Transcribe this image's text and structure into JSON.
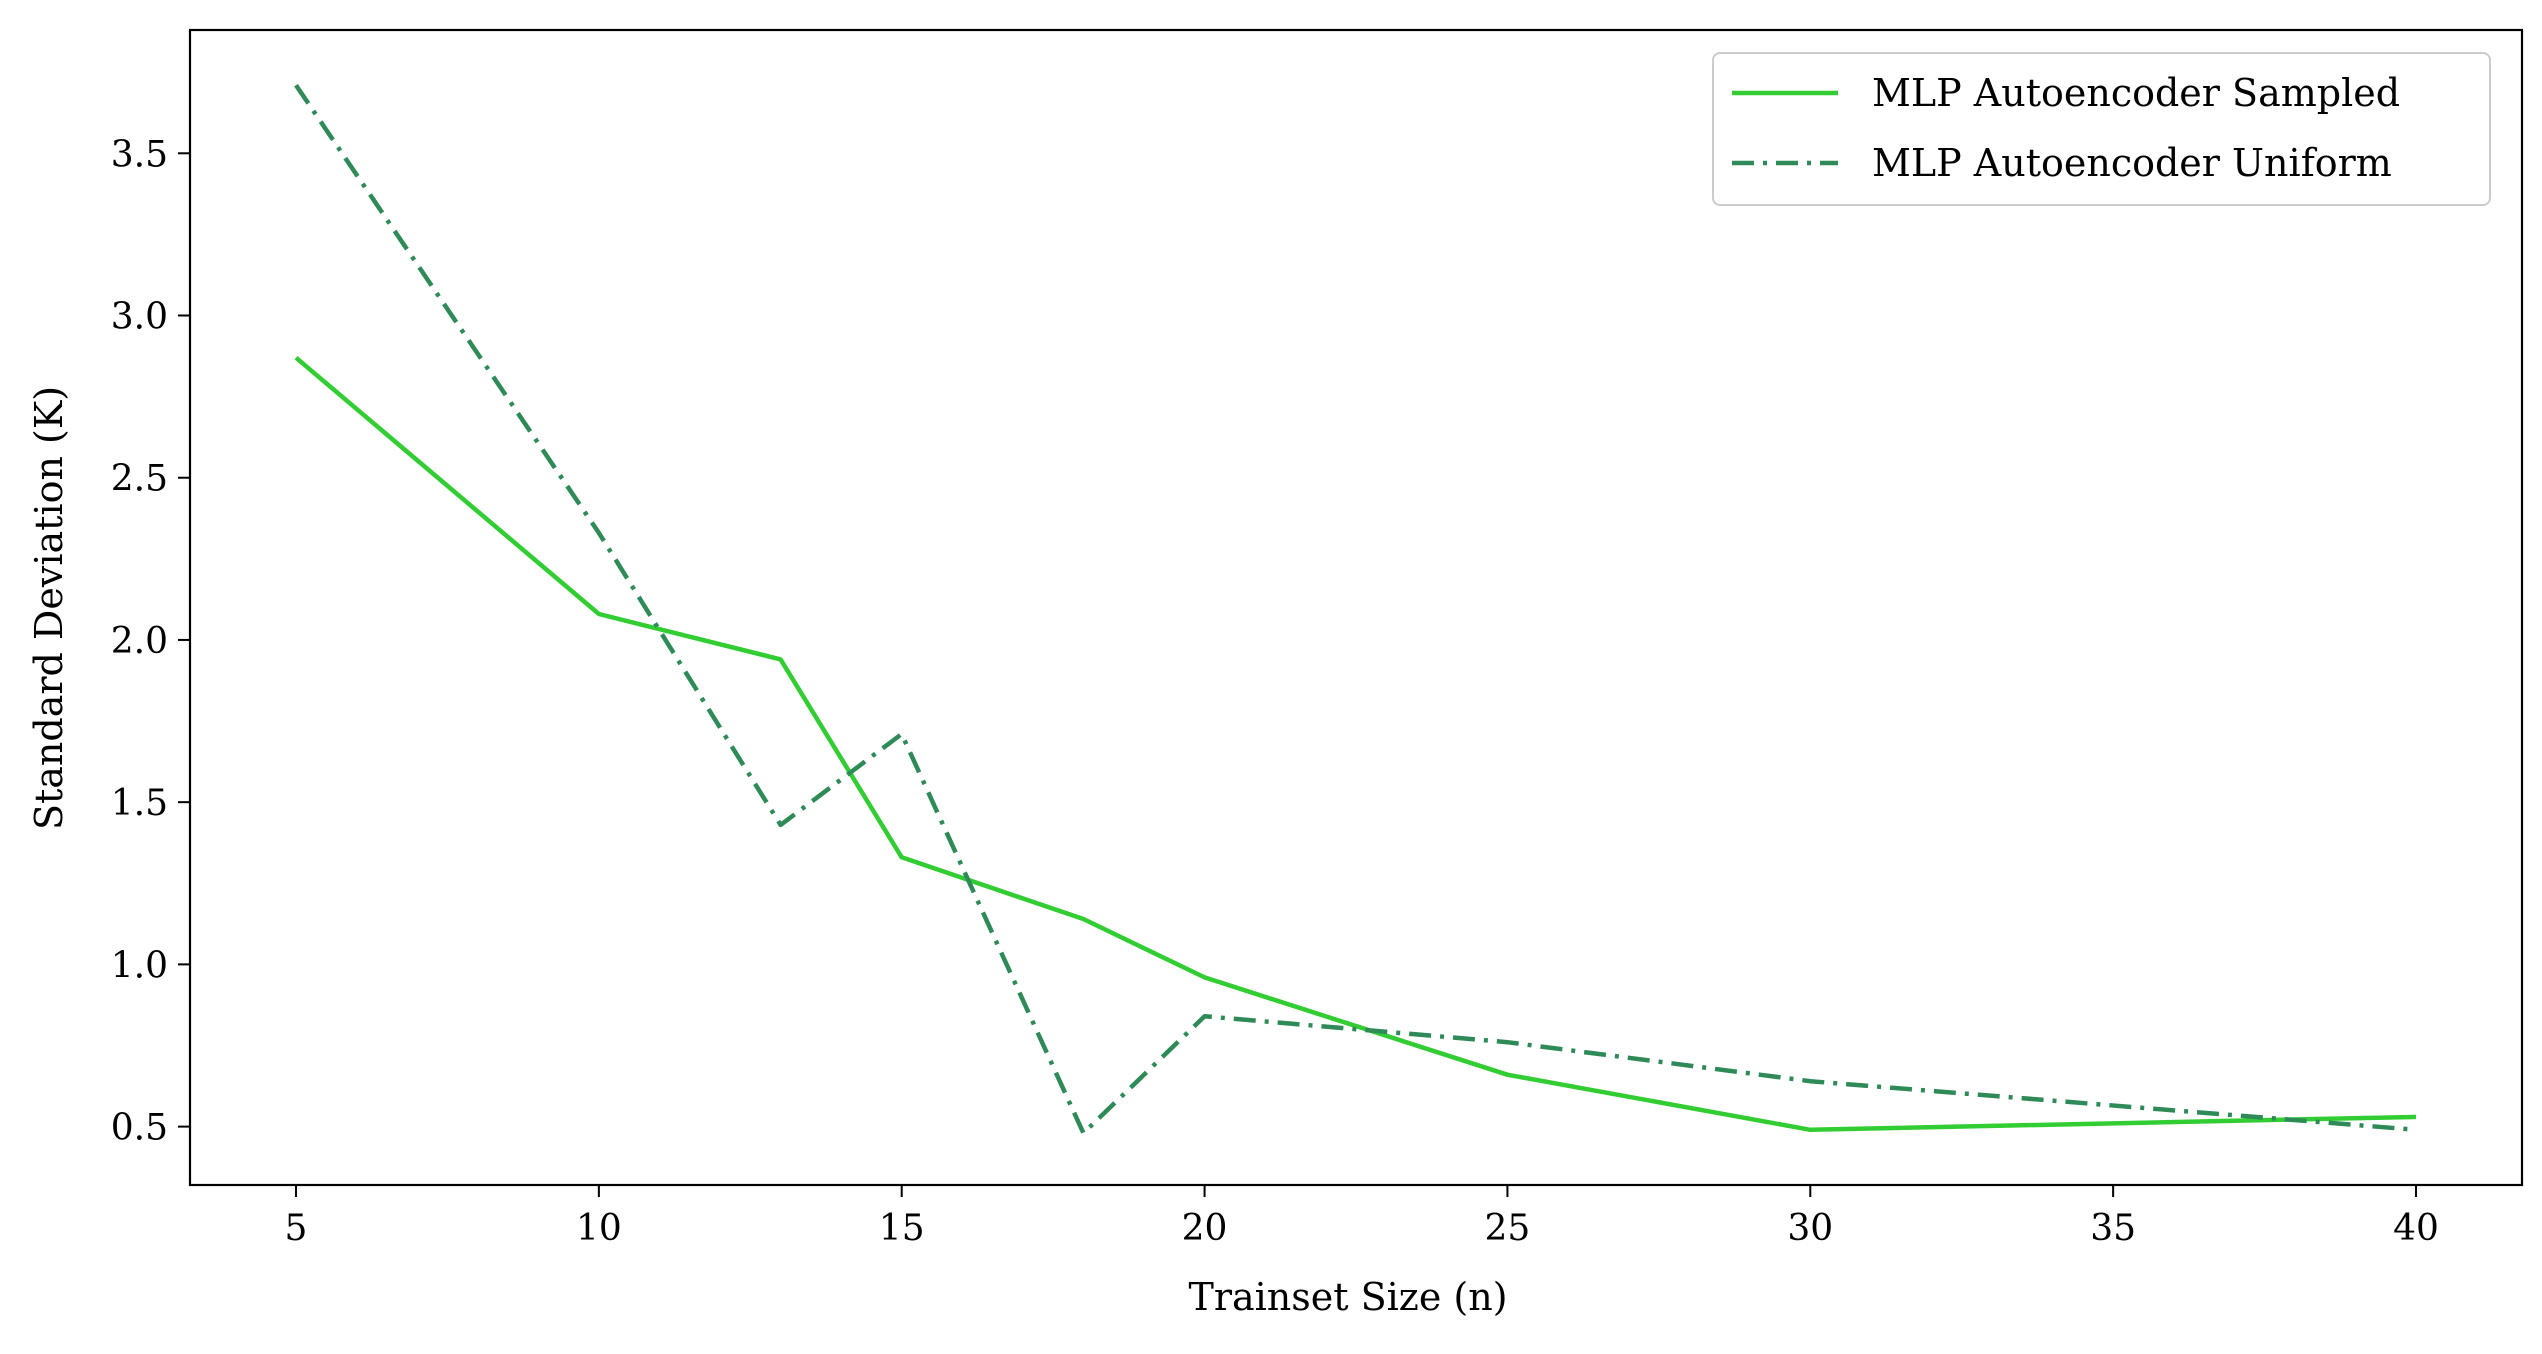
{
  "chart_data": {
    "type": "line",
    "title": "",
    "xlabel": "Trainset Size (n)",
    "ylabel": "Standard Deviation (K)",
    "xlim": [
      3.25,
      41.75
    ],
    "ylim": [
      0.32,
      3.88
    ],
    "xticks": [
      5,
      10,
      15,
      20,
      25,
      30,
      35,
      40
    ],
    "yticks": [
      0.5,
      1.0,
      1.5,
      2.0,
      2.5,
      3.0,
      3.5
    ],
    "xtick_labels": [
      "5",
      "10",
      "15",
      "20",
      "25",
      "30",
      "35",
      "40"
    ],
    "ytick_labels": [
      "0.5",
      "1.0",
      "1.5",
      "2.0",
      "2.5",
      "3.0",
      "3.5"
    ],
    "grid": false,
    "legend_position": "top-right",
    "series": [
      {
        "name": "MLP Autoencoder Sampled",
        "style": "solid",
        "color": "#32CD32",
        "x": [
          5,
          10,
          13,
          15,
          18,
          20,
          25,
          30,
          40
        ],
        "y": [
          2.87,
          2.08,
          1.94,
          1.33,
          1.14,
          0.96,
          0.66,
          0.49,
          0.53
        ]
      },
      {
        "name": "MLP Autoencoder Uniform",
        "style": "dashdot",
        "color": "#2E8B57",
        "x": [
          5,
          10,
          13,
          15,
          18,
          20,
          25,
          30,
          40
        ],
        "y": [
          3.71,
          2.33,
          1.43,
          1.71,
          0.48,
          0.84,
          0.76,
          0.64,
          0.49
        ]
      }
    ]
  }
}
